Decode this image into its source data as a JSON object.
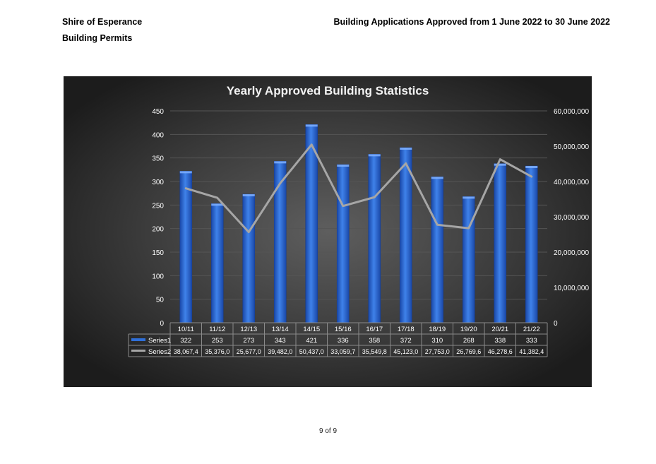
{
  "header": {
    "org": "Shire of Esperance",
    "subtitle": "Building Permits",
    "report_title": "Building Applications Approved from 1 June 2022 to 30 June 2022"
  },
  "footer": {
    "page": "9 of 9"
  },
  "chart_data": {
    "type": "bar",
    "title": "Yearly Approved Building Statistics",
    "categories": [
      "10/11",
      "11/12",
      "12/13",
      "13/14",
      "14/15",
      "15/16",
      "16/17",
      "17/18",
      "18/19",
      "19/20",
      "20/21",
      "21/22"
    ],
    "series": [
      {
        "name": "Series1",
        "type": "bar",
        "axis": "left",
        "values": [
          322,
          253,
          273,
          343,
          421,
          336,
          358,
          372,
          310,
          268,
          338,
          333
        ],
        "labels": [
          "322",
          "253",
          "273",
          "343",
          "421",
          "336",
          "358",
          "372",
          "310",
          "268",
          "338",
          "333"
        ],
        "color": "#2f6fd8"
      },
      {
        "name": "Series2",
        "type": "line",
        "axis": "right",
        "values": [
          38067400,
          35376000,
          25677000,
          39482000,
          50437000,
          33059700,
          35549800,
          45123000,
          27753000,
          26769600,
          46278600,
          41382400
        ],
        "labels": [
          "38,067,4",
          "35,376,0",
          "25,677,0",
          "39,482,0",
          "50,437,0",
          "33,059,7",
          "35,549,8",
          "45,123,0",
          "27,753,0",
          "26,769,6",
          "46,278,6",
          "41,382,4"
        ],
        "color": "#a6a6a6"
      }
    ],
    "ylim": [
      0,
      450
    ],
    "y_ticks": [
      "450",
      "400",
      "350",
      "300",
      "250",
      "200",
      "150",
      "100",
      "50",
      "0"
    ],
    "y2lim": [
      0,
      60000000
    ],
    "y2_ticks": [
      "60,000,000",
      "50,000,000",
      "40,000,000",
      "30,000,000",
      "20,000,000",
      "10,000,000",
      "0"
    ],
    "grid": true,
    "data_table": true,
    "colors": {
      "background": "#333333",
      "grid": "#555555",
      "text": "#ffffff",
      "table_border": "#8a8a8a"
    }
  }
}
